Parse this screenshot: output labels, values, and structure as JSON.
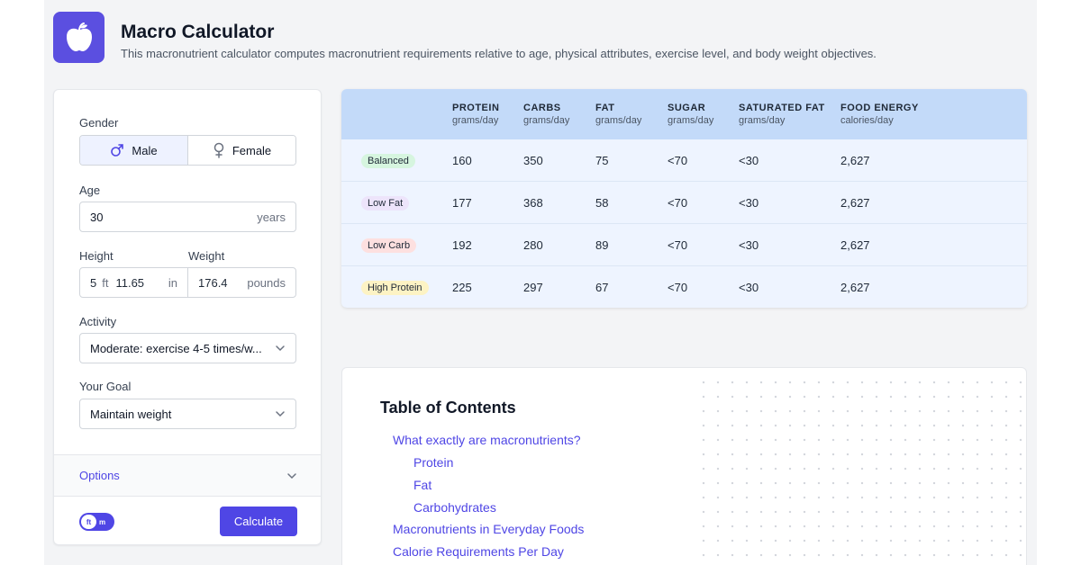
{
  "header": {
    "title": "Macro Calculator",
    "subtitle": "This macronutrient calculator computes macronutrient requirements relative to age, physical attributes, exercise level, and body weight objectives.",
    "logo_icon": "apple-icon"
  },
  "form": {
    "gender_label": "Gender",
    "gender_options": [
      "Male",
      "Female"
    ],
    "gender_selected": "Male",
    "age_label": "Age",
    "age_value": "30",
    "age_unit": "years",
    "height_label": "Height",
    "weight_label": "Weight",
    "height_ft": "5",
    "height_ft_unit": "ft",
    "height_in": "11.65",
    "height_in_unit": "in",
    "weight_value": "176.4",
    "weight_unit": "pounds",
    "activity_label": "Activity",
    "activity_value": "Moderate: exercise 4-5 times/w...",
    "goal_label": "Your Goal",
    "goal_value": "Maintain weight",
    "options_label": "Options",
    "units_toggle": {
      "selected": "ft",
      "other": "m"
    },
    "calculate_label": "Calculate"
  },
  "results": {
    "columns": [
      {
        "name": "PROTEIN",
        "unit": "grams/day"
      },
      {
        "name": "CARBS",
        "unit": "grams/day"
      },
      {
        "name": "FAT",
        "unit": "grams/day"
      },
      {
        "name": "SUGAR",
        "unit": "grams/day"
      },
      {
        "name": "SATURATED FAT",
        "unit": "grams/day"
      },
      {
        "name": "FOOD ENERGY",
        "unit": "calories/day"
      }
    ],
    "rows": [
      {
        "label": "Balanced",
        "badge_color": "#d6f5df",
        "values": [
          "160",
          "350",
          "75",
          "<70",
          "<30",
          "2,627"
        ]
      },
      {
        "label": "Low Fat",
        "badge_color": "#ede4fb",
        "values": [
          "177",
          "368",
          "58",
          "<70",
          "<30",
          "2,627"
        ]
      },
      {
        "label": "Low Carb",
        "badge_color": "#fde0e0",
        "values": [
          "192",
          "280",
          "89",
          "<70",
          "<30",
          "2,627"
        ]
      },
      {
        "label": "High Protein",
        "badge_color": "#fdf3c4",
        "values": [
          "225",
          "297",
          "67",
          "<70",
          "<30",
          "2,627"
        ]
      }
    ]
  },
  "toc": {
    "title": "Table of Contents",
    "items": [
      {
        "label": "What exactly are macronutrients?",
        "level": 0
      },
      {
        "label": "Protein",
        "level": 1
      },
      {
        "label": "Fat",
        "level": 1
      },
      {
        "label": "Carbohydrates",
        "level": 1
      },
      {
        "label": "Macronutrients in Everyday Foods",
        "level": 0
      },
      {
        "label": "Calorie Requirements Per Day",
        "level": 0
      }
    ]
  },
  "colors": {
    "accent": "#4f46e5",
    "logo_bg": "#5b4fe0",
    "table_header_bg": "#c3daf9",
    "table_body_bg": "#eef4ff"
  }
}
